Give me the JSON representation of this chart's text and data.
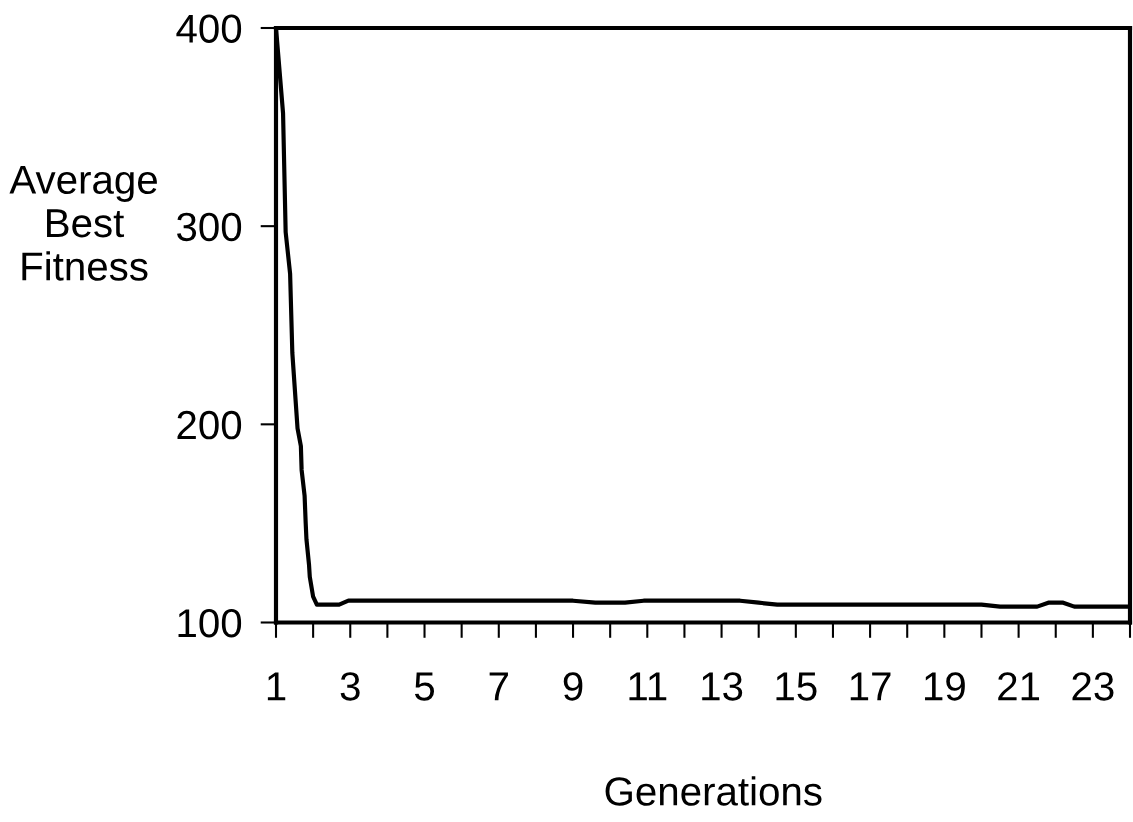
{
  "chart_data": {
    "type": "line",
    "xlabel": "Generations",
    "ylabel": "Average\nBest\nFitness",
    "x": [
      1,
      1.19,
      1.26,
      1.38,
      1.44,
      1.58,
      1.67,
      1.69,
      1.77,
      1.8,
      1.82,
      1.89,
      1.91,
      2.0,
      2.1,
      2.7,
      2.95,
      9.0,
      9.6,
      10.4,
      10.9,
      13.5,
      14.0,
      14.5,
      20.0,
      20.5,
      21.5,
      21.8,
      22.2,
      22.5,
      24
    ],
    "series": [
      {
        "color": "#000000",
        "values": [
          400,
          357,
          297,
          276,
          236,
          198,
          189,
          177,
          164,
          150,
          142,
          129,
          123,
          113,
          109,
          109,
          111,
          111,
          110,
          110,
          111,
          111,
          110,
          109,
          109,
          108,
          108,
          110,
          110,
          108,
          108
        ]
      }
    ],
    "xlim": [
      1,
      24
    ],
    "ylim": [
      100,
      400
    ],
    "xticks": [
      1,
      {
        "value": 2,
        "label": null
      },
      3,
      {
        "value": 4,
        "label": null
      },
      5,
      {
        "value": 6,
        "label": null
      },
      7,
      {
        "value": 8,
        "label": null
      },
      9,
      {
        "value": 10,
        "label": null
      },
      11,
      {
        "value": 12,
        "label": null
      },
      13,
      {
        "value": 14,
        "label": null
      },
      15,
      {
        "value": 16,
        "label": null
      },
      17,
      {
        "value": 18,
        "label": null
      },
      19,
      {
        "value": 20,
        "label": null
      },
      21,
      {
        "value": 22,
        "label": null
      },
      23,
      {
        "value": 24,
        "label": null
      }
    ],
    "yticks": [
      100,
      200,
      300,
      400
    ],
    "grid": false,
    "legend": false,
    "marker": "none",
    "line_style": "solid"
  }
}
